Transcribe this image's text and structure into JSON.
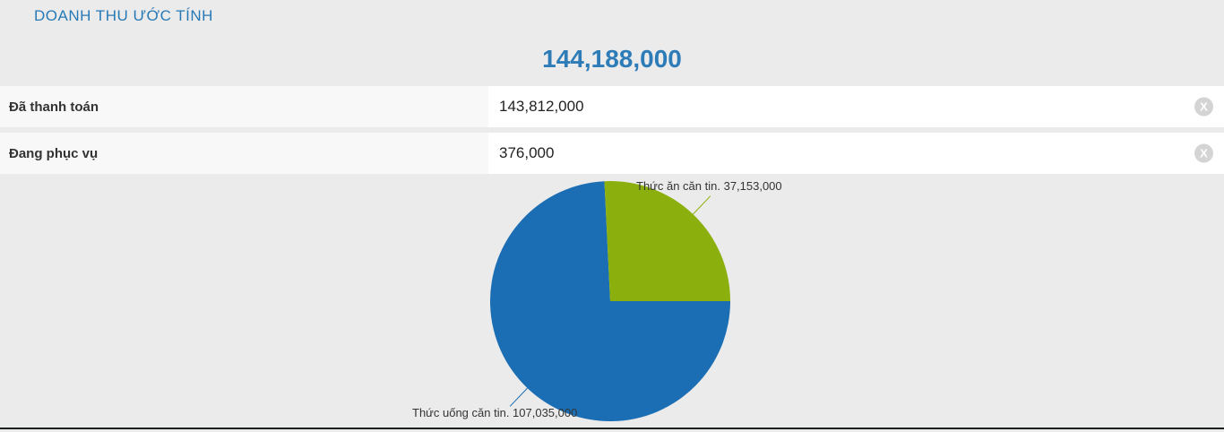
{
  "header": {
    "title": "DOANH THU ƯỚC TÍNH"
  },
  "summary": {
    "total_display": "144,188,000"
  },
  "rows": [
    {
      "label": "Đã thanh toán",
      "value": "143,812,000",
      "clear_label": "X"
    },
    {
      "label": "Đang phục vụ",
      "value": "376,000",
      "clear_label": "X"
    }
  ],
  "chart_data": {
    "type": "pie",
    "title": "",
    "total": 144188000,
    "start_angle_deg": 90,
    "direction": "clockwise",
    "legend": "none",
    "labels": "outside-with-connector",
    "points": [
      {
        "name": "Thức uống căn tin",
        "value": 107035000,
        "label": "Thức uống căn tin. 107,035,000",
        "color": "#1b6eb3"
      },
      {
        "name": "Thức ăn căn tin",
        "value": 37153000,
        "label": "Thức ăn căn tin. 37,153,000",
        "color": "#8bb00e"
      }
    ]
  },
  "colors": {
    "background": "#ebebeb",
    "title_blue": "#2779b6",
    "total_blue": "#2d7cb8",
    "row_label_bg": "#f8f8f8",
    "row_field_bg": "#ffffff",
    "clear_btn_bg": "#d4d4d4",
    "pie_blue": "#1b6eb3",
    "pie_green": "#8bb00e",
    "bottom_bar": "#1c211d"
  }
}
